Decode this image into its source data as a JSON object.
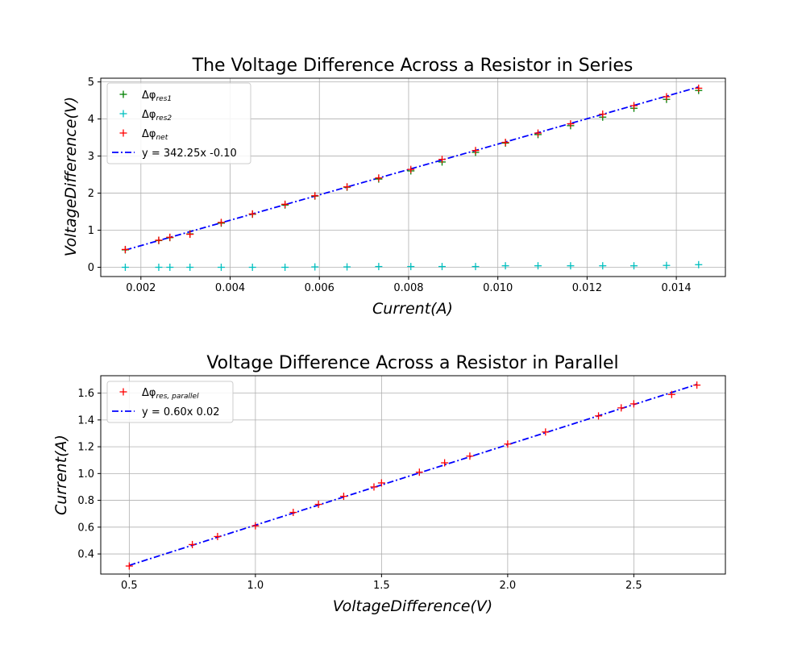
{
  "colors": {
    "res1": "#008000",
    "res2": "#00bfbf",
    "net": "#ff0000",
    "fit": "#0000ff",
    "parallel": "#ff0000"
  },
  "chart_data": [
    {
      "type": "scatter",
      "title": "The Voltage Difference Across a Resistor in Series",
      "xlabel": "Current(A)",
      "ylabel": "VoltageDifference(V)",
      "xlim": [
        0.0011,
        0.0151
      ],
      "ylim": [
        -0.25,
        5.1
      ],
      "xticks": [
        0.002,
        0.004,
        0.006,
        0.008,
        0.01,
        0.012,
        0.014
      ],
      "xtick_labels": [
        "0.002",
        "0.004",
        "0.006",
        "0.008",
        "0.010",
        "0.012",
        "0.014"
      ],
      "yticks": [
        0,
        1,
        2,
        3,
        4,
        5
      ],
      "ytick_labels": [
        "0",
        "1",
        "2",
        "3",
        "4",
        "5"
      ],
      "grid": true,
      "legend_position": "top-left",
      "x": [
        0.00165,
        0.0024,
        0.00265,
        0.0031,
        0.0038,
        0.0045,
        0.00523,
        0.0059,
        0.00662,
        0.00733,
        0.00805,
        0.00875,
        0.0095,
        0.01017,
        0.0109,
        0.01163,
        0.01235,
        0.01305,
        0.01378,
        0.0145
      ],
      "series": [
        {
          "name": "res1",
          "label_base": "Δφ",
          "label_sub": "res1",
          "marker": "+",
          "color_key": "res1",
          "values": [
            0.47,
            0.72,
            0.8,
            0.9,
            1.19,
            1.43,
            1.68,
            1.92,
            2.16,
            2.38,
            2.6,
            2.84,
            3.1,
            3.35,
            3.58,
            3.82,
            4.05,
            4.29,
            4.53,
            4.77
          ]
        },
        {
          "name": "res2",
          "label_base": "Δφ",
          "label_sub": "res2",
          "marker": "+",
          "color_key": "res2",
          "values": [
            0.0,
            0.0,
            0.0,
            0.0,
            0.0,
            0.0,
            0.0,
            0.01,
            0.01,
            0.02,
            0.02,
            0.02,
            0.02,
            0.04,
            0.04,
            0.04,
            0.04,
            0.04,
            0.05,
            0.07
          ]
        },
        {
          "name": "net",
          "label_base": "Δφ",
          "label_sub": "net",
          "marker": "+",
          "color_key": "net",
          "values": [
            0.48,
            0.73,
            0.81,
            0.89,
            1.21,
            1.44,
            1.7,
            1.93,
            2.17,
            2.41,
            2.64,
            2.91,
            3.15,
            3.37,
            3.62,
            3.87,
            4.13,
            4.36,
            4.6,
            4.83
          ]
        }
      ],
      "fit": {
        "label": "y = 342.25x  -0.10",
        "slope": 342.25,
        "intercept": -0.1,
        "x_range": [
          0.00165,
          0.0145
        ],
        "color_key": "fit"
      }
    },
    {
      "type": "scatter",
      "title": "Voltage Difference Across a Resistor in Parallel",
      "xlabel": "VoltageDifference(V)",
      "ylabel": "Current(A)",
      "xlim": [
        0.387,
        2.863
      ],
      "ylim": [
        0.25,
        1.73
      ],
      "xticks": [
        0.5,
        1.0,
        1.5,
        2.0,
        2.5
      ],
      "xtick_labels": [
        "0.5",
        "1.0",
        "1.5",
        "2.0",
        "2.5"
      ],
      "yticks": [
        0.4,
        0.6,
        0.8,
        1.0,
        1.2,
        1.4,
        1.6
      ],
      "ytick_labels": [
        "0.4",
        "0.6",
        "0.8",
        "1.0",
        "1.2",
        "1.4",
        "1.6"
      ],
      "grid": true,
      "legend_position": "top-left",
      "x": [
        0.5,
        0.75,
        0.85,
        1.0,
        1.15,
        1.25,
        1.35,
        1.47,
        1.5,
        1.65,
        1.75,
        1.85,
        2.0,
        2.15,
        2.36,
        2.45,
        2.5,
        2.65,
        2.75
      ],
      "series": [
        {
          "name": "parallel",
          "label_base": "Δφ",
          "label_sub": "res, parallel",
          "marker": "+",
          "color_key": "parallel",
          "values": [
            0.31,
            0.47,
            0.53,
            0.61,
            0.71,
            0.77,
            0.83,
            0.9,
            0.93,
            1.01,
            1.08,
            1.13,
            1.22,
            1.31,
            1.43,
            1.49,
            1.52,
            1.59,
            1.66
          ]
        }
      ],
      "fit": {
        "label": "y = 0.60x  0.02",
        "slope": 0.6,
        "intercept": 0.015,
        "x_range": [
          0.5,
          2.75
        ],
        "color_key": "fit"
      }
    }
  ]
}
